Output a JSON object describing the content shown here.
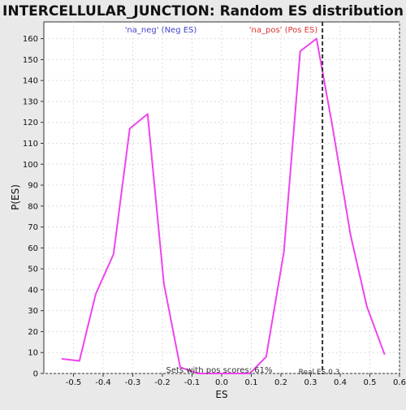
{
  "chart_data": {
    "type": "line",
    "title": "INTERCELLULAR_JUNCTION: Random ES distribution",
    "xlabel": "ES",
    "ylabel": "P(ES)",
    "xlim": [
      -0.6,
      0.6
    ],
    "ylim": [
      0,
      168
    ],
    "x_ticks": [
      -0.5,
      -0.4,
      -0.3,
      -0.2,
      -0.1,
      0.0,
      0.1,
      0.2,
      0.3,
      0.4,
      0.5,
      0.6
    ],
    "x_tick_labels": [
      "-0.5",
      "-0.4",
      "-0.3",
      "-0.2",
      "-0.1",
      "0.0",
      "0.1",
      "0.2",
      "0.3",
      "0.4",
      "0.5",
      "0.6"
    ],
    "y_ticks": [
      0,
      10,
      20,
      30,
      40,
      50,
      60,
      70,
      80,
      90,
      100,
      110,
      120,
      130,
      140,
      150,
      160
    ],
    "y_tick_labels": [
      "0",
      "10",
      "20",
      "30",
      "40",
      "50",
      "60",
      "70",
      "80",
      "90",
      "100",
      "110",
      "120",
      "130",
      "140",
      "150",
      "160"
    ],
    "grid": true,
    "series": [
      {
        "color": "#ee44ee",
        "x": [
          -0.54,
          -0.48,
          -0.425,
          -0.365,
          -0.31,
          -0.25,
          -0.195,
          -0.14,
          -0.08,
          -0.02,
          0.04,
          0.095,
          0.15,
          0.21,
          0.265,
          0.32,
          0.375,
          0.435,
          0.49,
          0.55
        ],
        "y": [
          7,
          6,
          38,
          57,
          117,
          124,
          43,
          3,
          0,
          0,
          0,
          0,
          8,
          58,
          154,
          160,
          117,
          66,
          32,
          9
        ]
      }
    ],
    "reference_line": {
      "x": 0.34,
      "style": "dashed",
      "color": "#333333"
    },
    "annotations": {
      "neg_label": "'na_neg' (Neg ES)",
      "pos_label": "'na_pos' (Pos ES)",
      "pos_scores": "Sets with pos scores: 61%",
      "real_es": "Real ES 0.3"
    },
    "colors": {
      "background": "#e9e9e9",
      "plot_background": "#ffffff",
      "neg_label": "#4444cc",
      "pos_label": "#dd3333",
      "grid": "#dddddd",
      "axis": "#333333"
    }
  }
}
